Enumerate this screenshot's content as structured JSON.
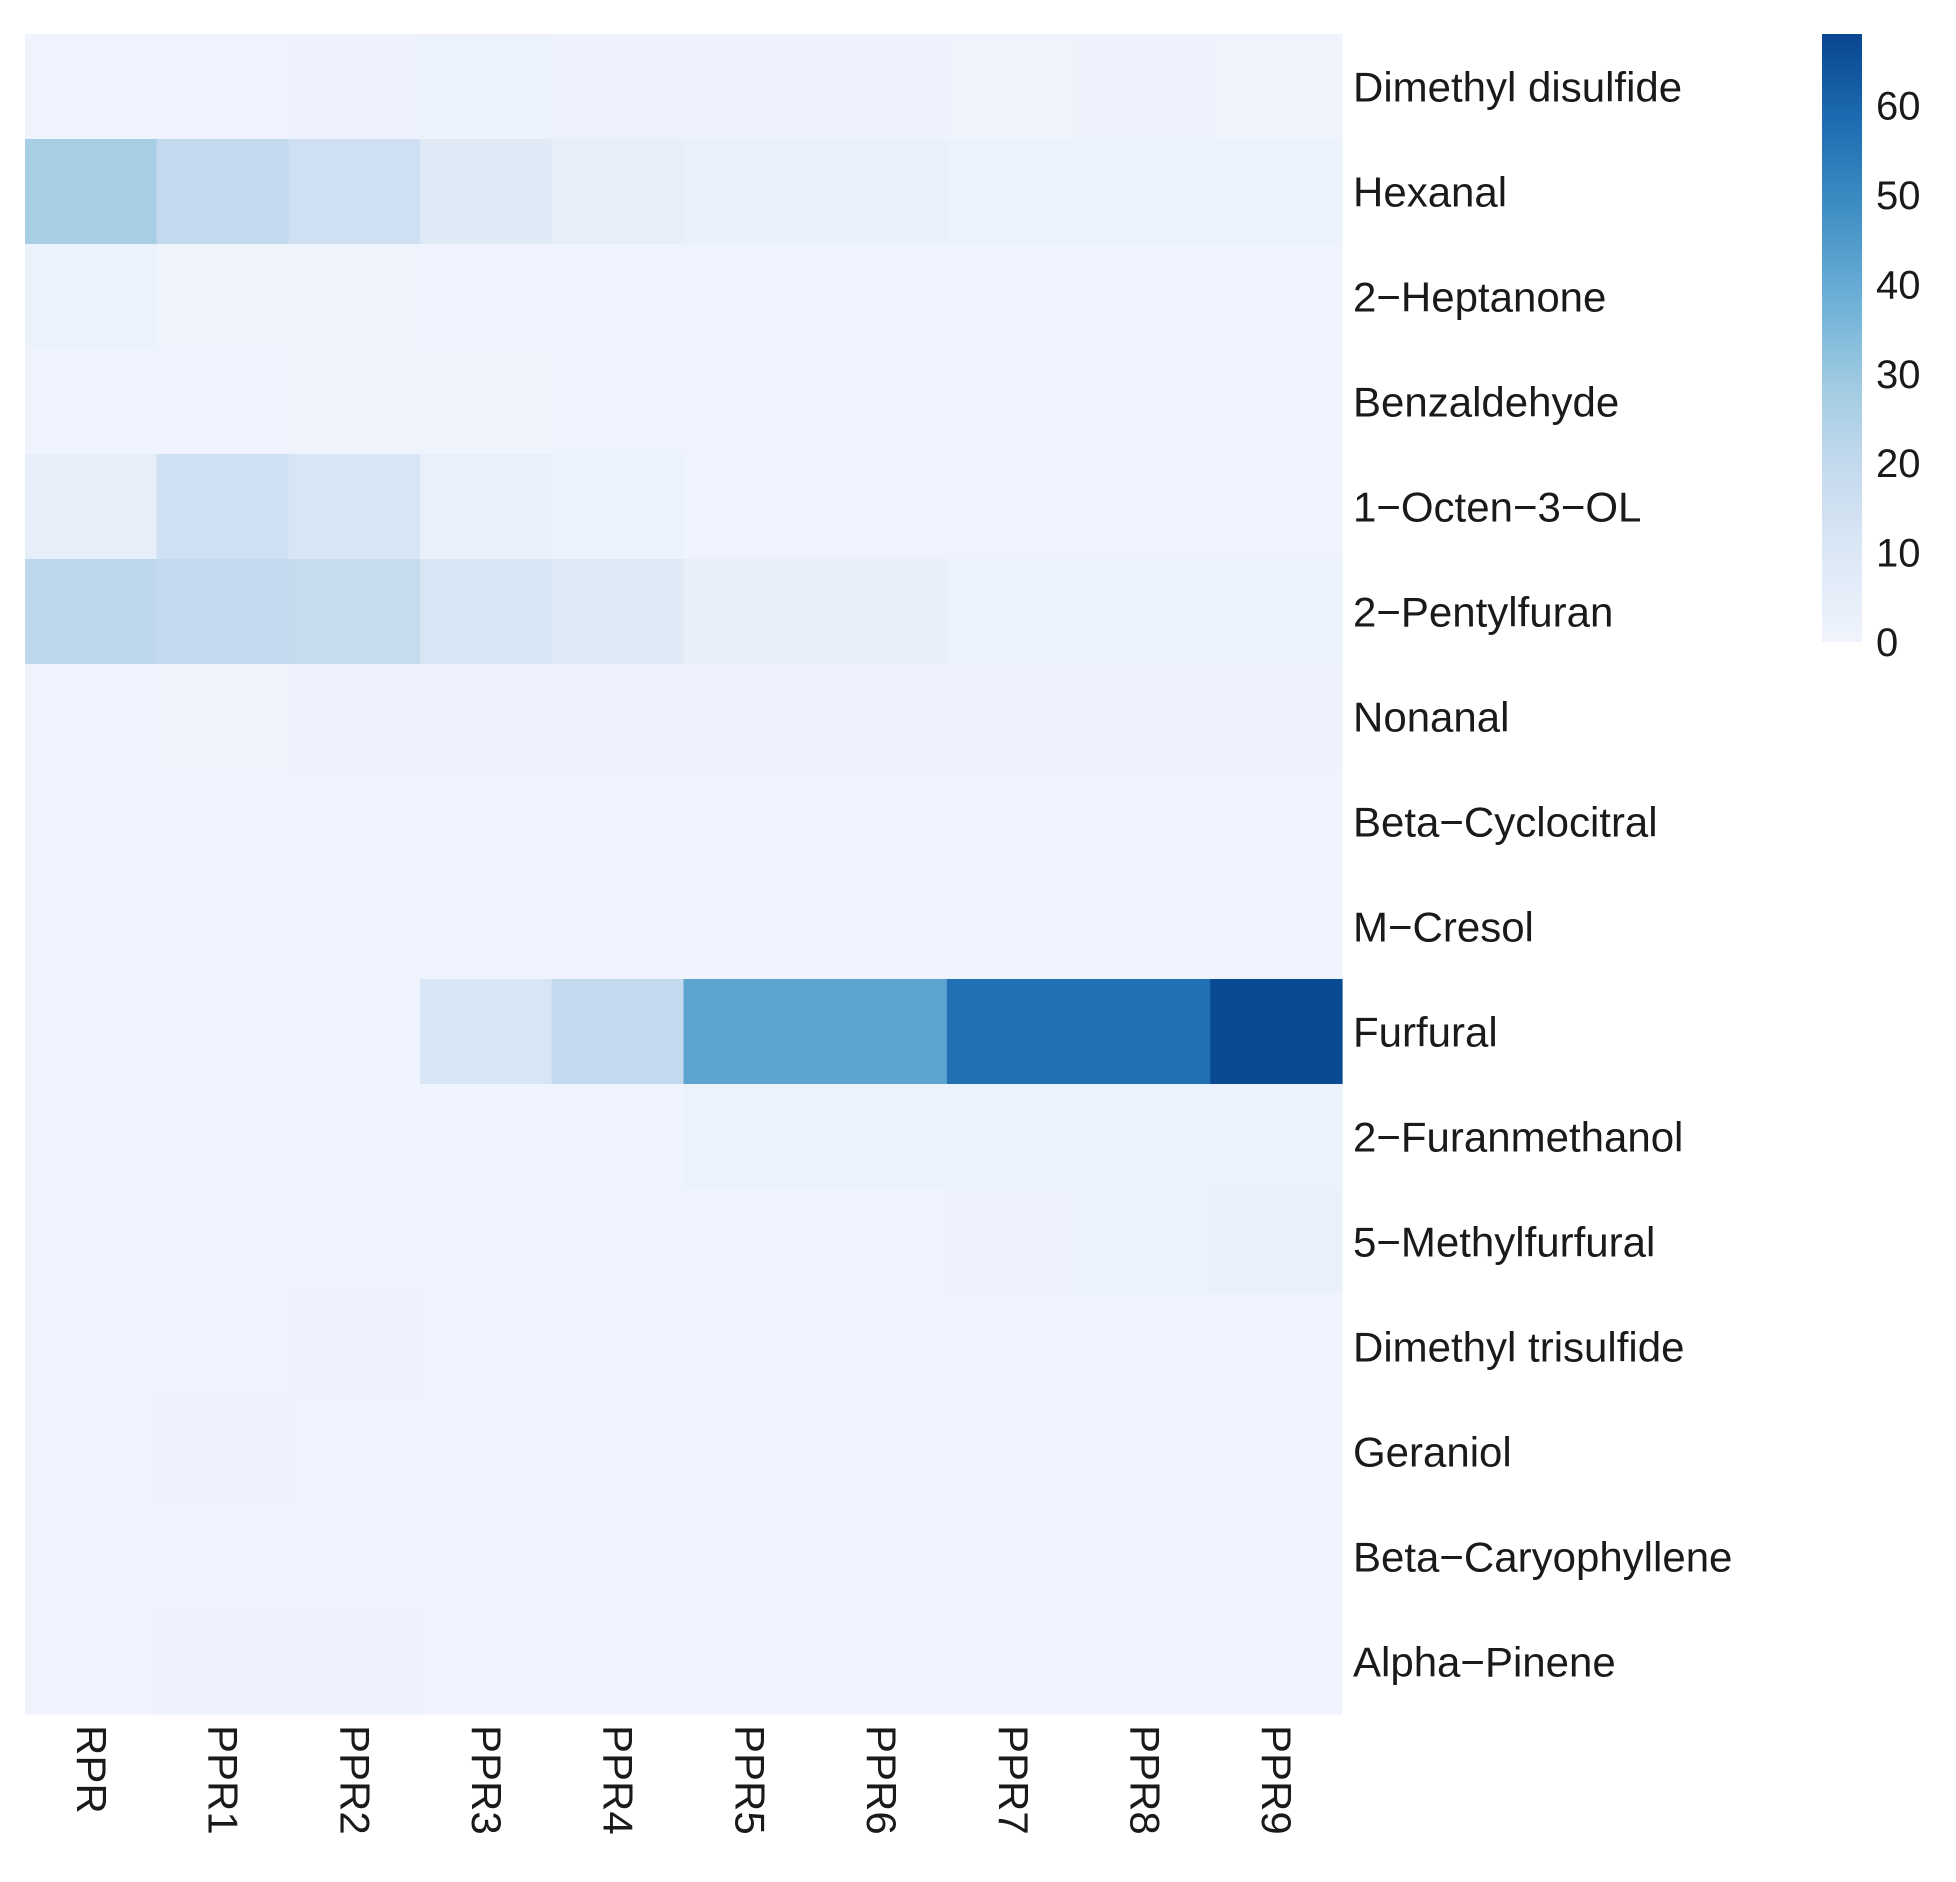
{
  "chart_data": {
    "type": "heatmap",
    "title": "",
    "xlabel": "",
    "ylabel": "",
    "columns": [
      "RPR",
      "PPR1",
      "PPR2",
      "PPR3",
      "PPR4",
      "PPR5",
      "PPR6",
      "PPR7",
      "PPR8",
      "PPR9"
    ],
    "rows": [
      "Dimethyl disulfide",
      "Hexanal",
      "2−Heptanone",
      "Benzaldehyde",
      "1−Octen−3−OL",
      "2−Pentylfuran",
      "Nonanal",
      "Beta−Cyclocitral",
      "M−Cresol",
      "Furfural",
      "2−Furanmethanol",
      "5−Methylfurfural",
      "Dimethyl trisulfide",
      "Geraniol",
      "Beta−Caryophyllene",
      "Alpha−Pinene"
    ],
    "values": [
      [
        0.5,
        0.5,
        1.5,
        2.0,
        1.5,
        1.5,
        1.5,
        1.0,
        1.5,
        1.0
      ],
      [
        27,
        20,
        15,
        8,
        5,
        3,
        3,
        2,
        2,
        2
      ],
      [
        2,
        1,
        1,
        0.5,
        0.5,
        0.5,
        0.5,
        0.5,
        0.5,
        0.5
      ],
      [
        0.5,
        0.5,
        1,
        1,
        0.5,
        0.5,
        0.5,
        0.5,
        0.5,
        0.5
      ],
      [
        5,
        15,
        12,
        3,
        2,
        0.5,
        0.5,
        0.5,
        0.5,
        0.5
      ],
      [
        21,
        20,
        19,
        12,
        8,
        4,
        4,
        2,
        2,
        2
      ],
      [
        0.5,
        1,
        1.5,
        1.5,
        1.5,
        1.5,
        1.5,
        1.5,
        1.5,
        1.5
      ],
      [
        0.5,
        0.5,
        0.5,
        0.5,
        0.5,
        0.5,
        0.5,
        0.5,
        0.5,
        0.5
      ],
      [
        0.5,
        0.5,
        0.5,
        0.5,
        0.5,
        0.5,
        0.5,
        0.5,
        0.5,
        0.5
      ],
      [
        0.5,
        0.5,
        0.5,
        12,
        20,
        42,
        42,
        57,
        57,
        67
      ],
      [
        0.5,
        0.5,
        0.5,
        0.5,
        0.5,
        2,
        2,
        2,
        2,
        2
      ],
      [
        0.5,
        0.5,
        0.5,
        0.5,
        0.5,
        0.5,
        0.5,
        1.5,
        2,
        2.5
      ],
      [
        0.5,
        0.5,
        1.5,
        0.5,
        0.5,
        0.5,
        0.5,
        0.5,
        0.5,
        0.5
      ],
      [
        0.5,
        1.5,
        0.5,
        0.5,
        0.5,
        0.5,
        0.5,
        0.5,
        0.5,
        0.5
      ],
      [
        0.5,
        0.5,
        0.5,
        0.5,
        0.5,
        0.5,
        0.5,
        0.5,
        0.5,
        0.5
      ],
      [
        0.5,
        1.5,
        1.5,
        0.5,
        0.5,
        0.5,
        0.5,
        0.5,
        0.5,
        0.5
      ]
    ],
    "colorbar": {
      "min": 0,
      "max": 68,
      "ticks": [
        0,
        10,
        20,
        30,
        40,
        50,
        60
      ],
      "colors": [
        "#f0f4fd",
        "#dce8f6",
        "#c5daee",
        "#9ecae1",
        "#6aaed6",
        "#3e8ec4",
        "#1d6cb1",
        "#08468f"
      ]
    }
  }
}
